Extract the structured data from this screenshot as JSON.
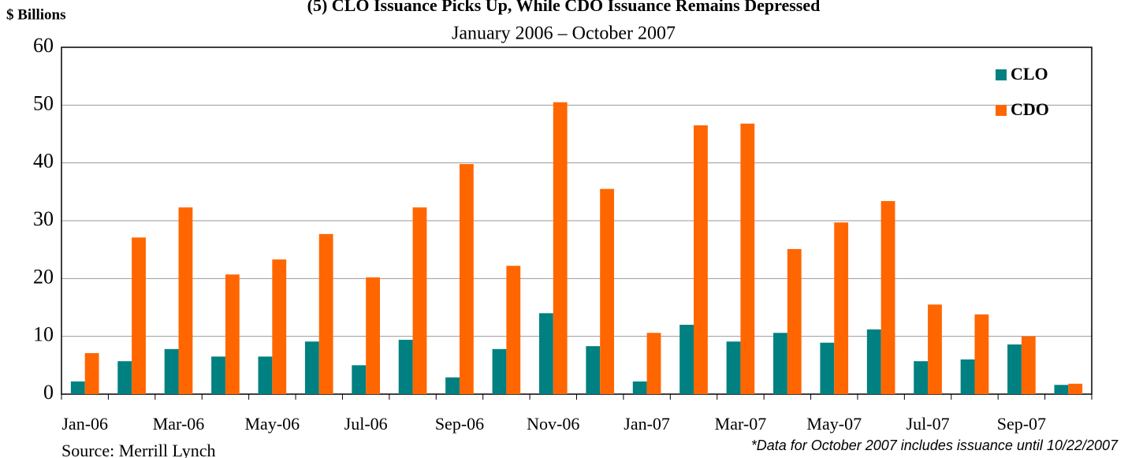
{
  "chart_data": {
    "type": "bar",
    "title": "(5) CLO Issuance Picks Up, While CDO Issuance Remains Depressed",
    "subtitle": "January 2006 – October 2007",
    "y_label": "$ Billions",
    "source": "Source: Merrill Lynch",
    "note": "*Data for October 2007 includes issuance until 10/22/2007",
    "categories": [
      "Jan-06",
      null,
      "Mar-06",
      null,
      "May-06",
      null,
      "Jul-06",
      null,
      "Sep-06",
      null,
      "Nov-06",
      null,
      "Jan-07",
      null,
      "Mar-07",
      null,
      "May-07",
      null,
      "Jul-07",
      null,
      "Sep-07",
      null
    ],
    "series": [
      {
        "name": "CLO",
        "color": "#008080",
        "values": [
          2.2,
          5.7,
          7.8,
          6.5,
          6.5,
          9.1,
          5.0,
          9.4,
          2.9,
          7.8,
          14.0,
          8.3,
          2.2,
          12.0,
          9.1,
          10.6,
          8.9,
          11.2,
          5.7,
          6.0,
          8.6,
          1.6
        ]
      },
      {
        "name": "CDO",
        "color": "#ff6600",
        "values": [
          7.1,
          27.1,
          32.3,
          20.7,
          23.3,
          27.7,
          20.2,
          32.3,
          39.8,
          22.2,
          50.5,
          35.5,
          10.6,
          46.5,
          46.8,
          25.1,
          29.7,
          33.4,
          15.5,
          13.8,
          10.0,
          1.8
        ]
      }
    ],
    "ylim": [
      0,
      60
    ],
    "yticks": [
      0,
      10,
      20,
      30,
      40,
      50,
      60
    ],
    "grid": true,
    "legend": "top-right"
  }
}
